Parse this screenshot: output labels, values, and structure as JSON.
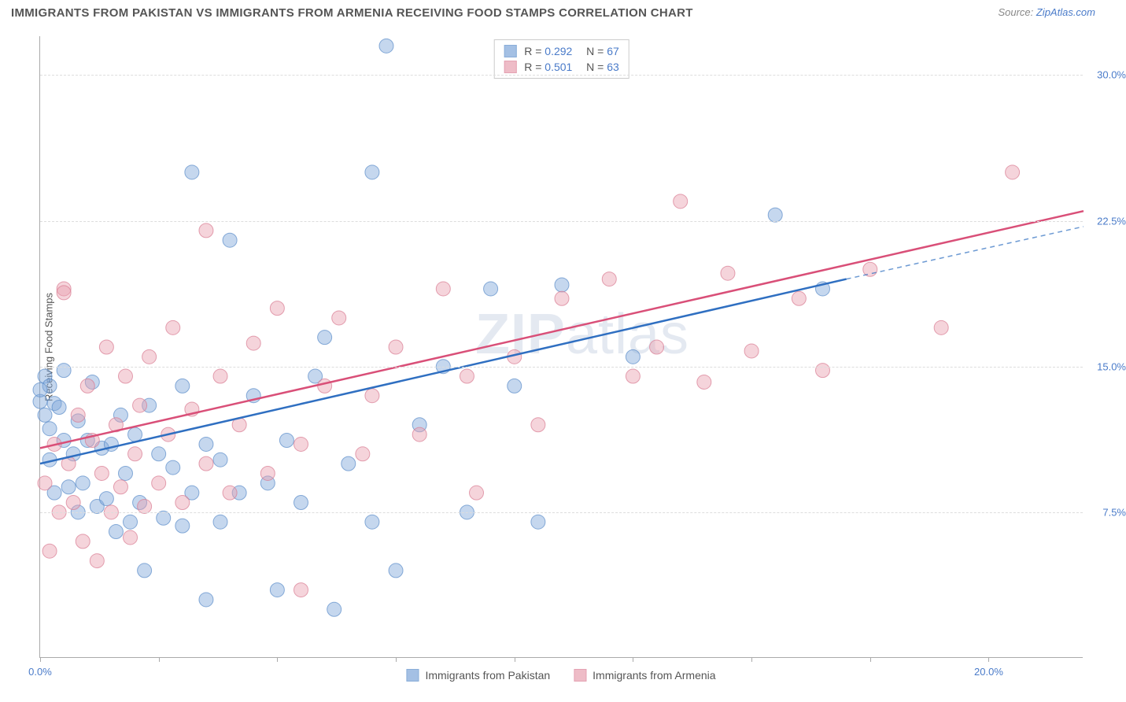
{
  "header": {
    "title": "IMMIGRANTS FROM PAKISTAN VS IMMIGRANTS FROM ARMENIA RECEIVING FOOD STAMPS CORRELATION CHART",
    "source_prefix": "Source: ",
    "source_name": "ZipAtlas.com"
  },
  "chart": {
    "type": "scatter",
    "xlim": [
      0,
      22
    ],
    "ylim": [
      0,
      32
    ],
    "x_ticks": [
      0,
      2.5,
      5.0,
      7.5,
      10.0,
      12.5,
      15.0,
      17.5,
      20.0
    ],
    "x_tick_labels": {
      "0": "0.0%",
      "20": "20.0%"
    },
    "y_grid": [
      7.5,
      15.0,
      22.5,
      30.0
    ],
    "y_tick_labels": {
      "7.5": "7.5%",
      "15.0": "15.0%",
      "22.5": "22.5%",
      "30.0": "30.0%"
    },
    "y_axis_label": "Receiving Food Stamps",
    "background_color": "#ffffff",
    "grid_color": "#dddddd",
    "axis_color": "#aaaaaa",
    "marker_radius": 9,
    "marker_opacity": 0.45,
    "series": [
      {
        "name": "Immigrants from Pakistan",
        "color_fill": "#7ea6d9",
        "color_stroke": "#5a8cc9",
        "line_color": "#2f6fc1",
        "r_value": "0.292",
        "n_value": "67",
        "trend": {
          "x1": 0,
          "y1": 10.0,
          "x2": 17.0,
          "y2": 19.5,
          "dash_to_x": 22,
          "dash_to_y": 22.2
        },
        "points": [
          [
            0.0,
            13.2
          ],
          [
            0.1,
            14.5
          ],
          [
            0.1,
            12.5
          ],
          [
            0.2,
            11.8
          ],
          [
            0.2,
            10.2
          ],
          [
            0.3,
            8.5
          ],
          [
            0.2,
            14.0
          ],
          [
            0.3,
            13.1
          ],
          [
            0.4,
            12.9
          ],
          [
            0.5,
            11.2
          ],
          [
            0.5,
            14.8
          ],
          [
            0.6,
            8.8
          ],
          [
            0.7,
            10.5
          ],
          [
            0.8,
            12.2
          ],
          [
            0.8,
            7.5
          ],
          [
            0.9,
            9.0
          ],
          [
            1.0,
            11.2
          ],
          [
            1.1,
            14.2
          ],
          [
            1.2,
            7.8
          ],
          [
            1.3,
            10.8
          ],
          [
            1.4,
            8.2
          ],
          [
            1.5,
            11.0
          ],
          [
            1.6,
            6.5
          ],
          [
            1.7,
            12.5
          ],
          [
            1.8,
            9.5
          ],
          [
            1.9,
            7.0
          ],
          [
            2.0,
            11.5
          ],
          [
            2.1,
            8.0
          ],
          [
            2.2,
            4.5
          ],
          [
            2.3,
            13.0
          ],
          [
            2.5,
            10.5
          ],
          [
            2.6,
            7.2
          ],
          [
            2.8,
            9.8
          ],
          [
            3.0,
            14.0
          ],
          [
            3.0,
            6.8
          ],
          [
            3.2,
            8.5
          ],
          [
            3.2,
            25.0
          ],
          [
            3.5,
            11.0
          ],
          [
            3.5,
            3.0
          ],
          [
            3.8,
            7.0
          ],
          [
            3.8,
            10.2
          ],
          [
            4.0,
            21.5
          ],
          [
            4.2,
            8.5
          ],
          [
            4.5,
            13.5
          ],
          [
            4.8,
            9.0
          ],
          [
            5.0,
            3.5
          ],
          [
            5.2,
            11.2
          ],
          [
            5.5,
            8.0
          ],
          [
            5.8,
            14.5
          ],
          [
            6.0,
            16.5
          ],
          [
            6.2,
            2.5
          ],
          [
            6.5,
            10.0
          ],
          [
            7.0,
            7.0
          ],
          [
            7.0,
            25.0
          ],
          [
            7.3,
            31.5
          ],
          [
            7.5,
            4.5
          ],
          [
            8.0,
            12.0
          ],
          [
            8.5,
            15.0
          ],
          [
            9.0,
            7.5
          ],
          [
            9.5,
            19.0
          ],
          [
            10.0,
            14.0
          ],
          [
            10.5,
            7.0
          ],
          [
            11.0,
            19.2
          ],
          [
            12.5,
            15.5
          ],
          [
            15.5,
            22.8
          ],
          [
            16.5,
            19.0
          ],
          [
            0.0,
            13.8
          ]
        ]
      },
      {
        "name": "Immigrants from Armenia",
        "color_fill": "#e8a0b0",
        "color_stroke": "#d97a92",
        "line_color": "#d94f78",
        "r_value": "0.501",
        "n_value": "63",
        "trend": {
          "x1": 0,
          "y1": 10.8,
          "x2": 22,
          "y2": 23.0
        },
        "points": [
          [
            0.1,
            9.0
          ],
          [
            0.2,
            5.5
          ],
          [
            0.3,
            11.0
          ],
          [
            0.4,
            7.5
          ],
          [
            0.5,
            19.0
          ],
          [
            0.6,
            10.0
          ],
          [
            0.7,
            8.0
          ],
          [
            0.8,
            12.5
          ],
          [
            0.9,
            6.0
          ],
          [
            1.0,
            14.0
          ],
          [
            1.1,
            11.2
          ],
          [
            1.2,
            5.0
          ],
          [
            1.3,
            9.5
          ],
          [
            1.4,
            16.0
          ],
          [
            1.5,
            7.5
          ],
          [
            1.6,
            12.0
          ],
          [
            1.7,
            8.8
          ],
          [
            1.8,
            14.5
          ],
          [
            1.9,
            6.2
          ],
          [
            2.0,
            10.5
          ],
          [
            2.1,
            13.0
          ],
          [
            2.2,
            7.8
          ],
          [
            2.3,
            15.5
          ],
          [
            2.5,
            9.0
          ],
          [
            2.7,
            11.5
          ],
          [
            2.8,
            17.0
          ],
          [
            3.0,
            8.0
          ],
          [
            3.2,
            12.8
          ],
          [
            3.5,
            10.0
          ],
          [
            3.5,
            22.0
          ],
          [
            3.8,
            14.5
          ],
          [
            4.0,
            8.5
          ],
          [
            4.2,
            12.0
          ],
          [
            4.5,
            16.2
          ],
          [
            4.8,
            9.5
          ],
          [
            5.0,
            18.0
          ],
          [
            5.5,
            11.0
          ],
          [
            5.5,
            3.5
          ],
          [
            6.0,
            14.0
          ],
          [
            6.3,
            17.5
          ],
          [
            6.8,
            10.5
          ],
          [
            7.0,
            13.5
          ],
          [
            7.5,
            16.0
          ],
          [
            8.0,
            11.5
          ],
          [
            8.5,
            19.0
          ],
          [
            9.0,
            14.5
          ],
          [
            9.2,
            8.5
          ],
          [
            10.0,
            15.5
          ],
          [
            10.5,
            12.0
          ],
          [
            11.0,
            18.5
          ],
          [
            12.0,
            19.5
          ],
          [
            12.5,
            14.5
          ],
          [
            13.0,
            16.0
          ],
          [
            13.5,
            23.5
          ],
          [
            14.0,
            14.2
          ],
          [
            14.5,
            19.8
          ],
          [
            15.0,
            15.8
          ],
          [
            16.0,
            18.5
          ],
          [
            16.5,
            14.8
          ],
          [
            17.5,
            20.0
          ],
          [
            19.0,
            17.0
          ],
          [
            20.5,
            25.0
          ],
          [
            0.5,
            18.8
          ]
        ]
      }
    ],
    "legend_top_labels": {
      "r": "R =",
      "n": "N ="
    },
    "watermark": "ZIPatlas"
  }
}
